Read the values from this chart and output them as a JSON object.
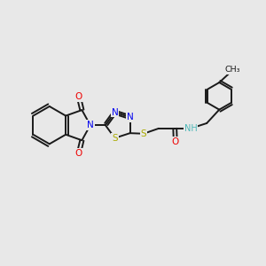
{
  "background_color": "#e8e8e8",
  "bond_color": "#1a1a1a",
  "N_color": "#0000ee",
  "O_color": "#ee0000",
  "S_color": "#aaaa00",
  "NH_color": "#4db8b8",
  "lw": 1.4,
  "figsize": [
    3.0,
    3.0
  ],
  "dpi": 100,
  "xlim": [
    0,
    10
  ],
  "ylim": [
    0,
    10
  ]
}
